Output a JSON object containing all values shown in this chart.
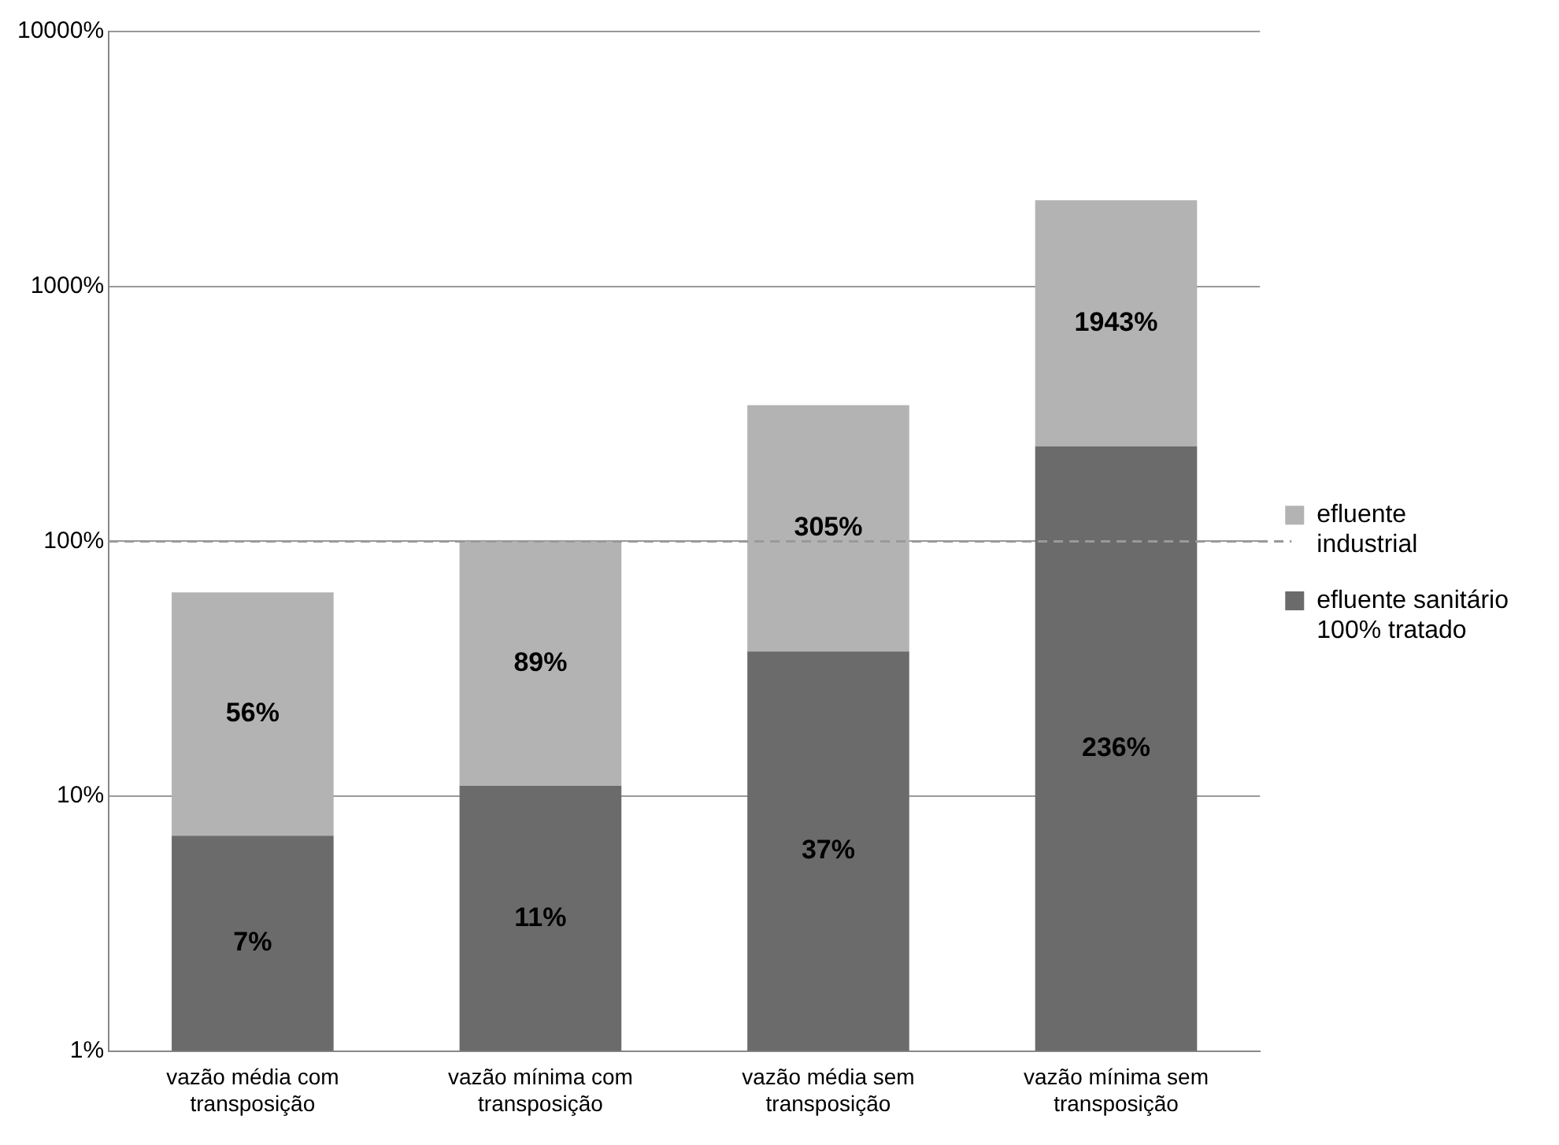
{
  "chart_data": {
    "type": "bar",
    "stacked": true,
    "log": "y",
    "categories": [
      "vazão média com transposição",
      "vazão mínima com transposição",
      "vazão média sem transposição",
      "vazão mínima sem transposição"
    ],
    "series": [
      {
        "name": "efluente sanitário 100% tratado",
        "color": "#6b6b6b",
        "values": [
          7,
          11,
          37,
          236
        ],
        "value_labels": [
          "7%",
          "11%",
          "37%",
          "236%"
        ]
      },
      {
        "name": "efluente industrial",
        "color": "#b3b3b3",
        "values": [
          56,
          89,
          305,
          1943
        ],
        "value_labels": [
          "56%",
          "89%",
          "305%",
          "1943%"
        ]
      }
    ],
    "ylim": [
      1,
      10000
    ],
    "yticks": [
      {
        "value": 1,
        "label": "1%"
      },
      {
        "value": 10,
        "label": "10%"
      },
      {
        "value": 100,
        "label": "100%"
      },
      {
        "value": 1000,
        "label": "1000%"
      },
      {
        "value": 10000,
        "label": "10000%"
      }
    ],
    "ref_lines": [
      {
        "axis": "y",
        "value": 100,
        "color": "#999999",
        "line_style": "dashed"
      }
    ],
    "grid": "y",
    "legend": "right"
  }
}
